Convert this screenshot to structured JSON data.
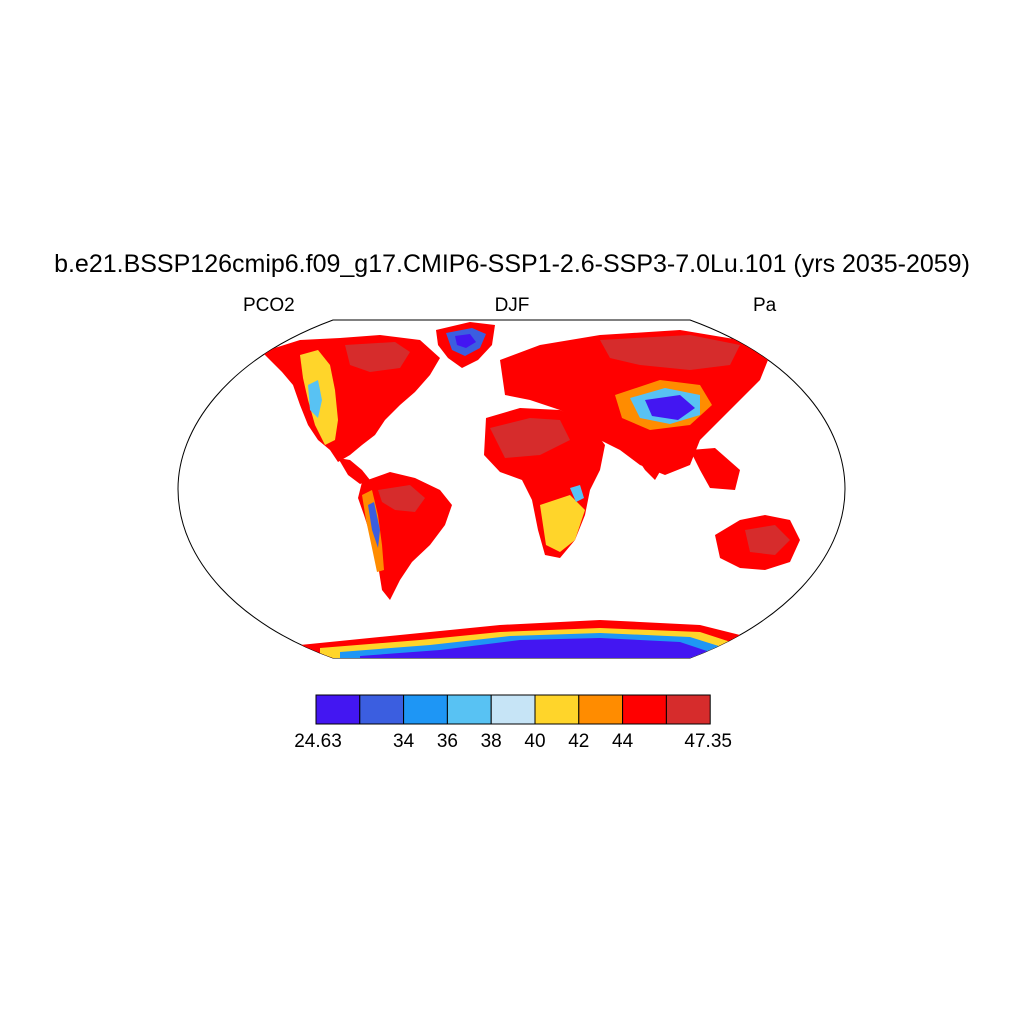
{
  "title": "b.e21.BSSP126cmip6.f09_g17.CMIP6-SSP1-2.6-SSP3-7.0Lu.101 (yrs 2035-2059)",
  "left_label": "PCO2",
  "center_label": "DJF",
  "right_label": "Pa",
  "colorbar": {
    "colors": [
      "#4316f2",
      "#3b5ee0",
      "#1e96f5",
      "#58c2f3",
      "#c6e4f6",
      "#ffd52a",
      "#ff8c00",
      "#ff0000",
      "#d62c2c"
    ],
    "labels": [
      "24.63",
      "34",
      "36",
      "38",
      "40",
      "42",
      "44",
      "47.35"
    ]
  }
}
